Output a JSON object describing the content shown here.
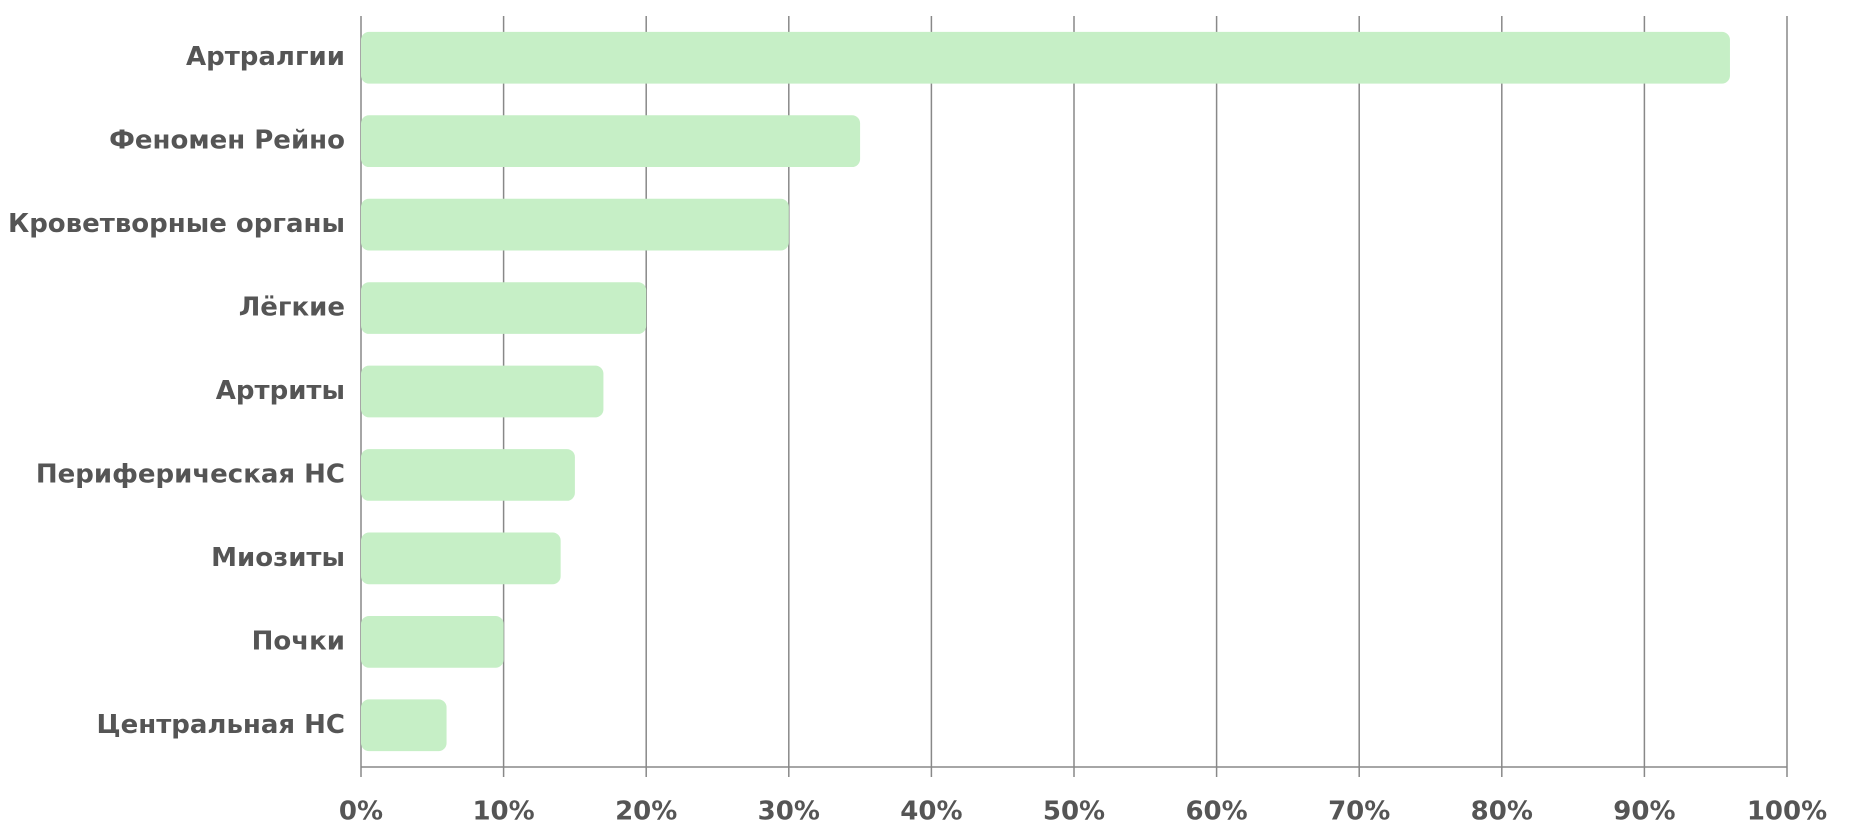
{
  "chart_data": {
    "type": "barh",
    "categories": [
      "Артралгии",
      "Феномен Рейно",
      "Кроветворные органы",
      "Лёгкие",
      "Артриты",
      "Периферическая НС",
      "Миозиты",
      "Почки",
      "Центральная НС"
    ],
    "values": [
      96,
      35,
      30,
      20,
      17,
      15,
      14,
      10,
      6
    ],
    "color": "#c6efc6",
    "xlim": [
      0,
      100
    ],
    "xticks": [
      {
        "value": 0,
        "label": "0%"
      },
      {
        "value": 10,
        "label": "10%"
      },
      {
        "value": 20,
        "label": "20%"
      },
      {
        "value": 30,
        "label": "30%"
      },
      {
        "value": 40,
        "label": "40%"
      },
      {
        "value": 50,
        "label": "50%"
      },
      {
        "value": 60,
        "label": "60%"
      },
      {
        "value": 70,
        "label": "70%"
      },
      {
        "value": 80,
        "label": "80%"
      },
      {
        "value": 90,
        "label": "90%"
      },
      {
        "value": 100,
        "label": "100%"
      }
    ],
    "grid": true
  }
}
